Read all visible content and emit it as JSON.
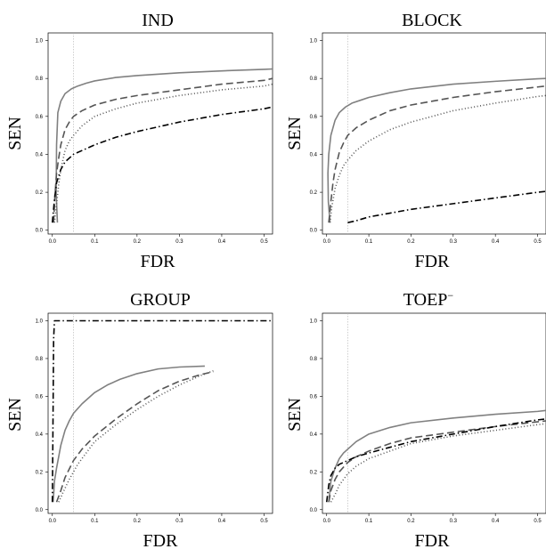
{
  "chart_data": [
    {
      "type": "line",
      "title": "IND",
      "xlabel": "FDR",
      "ylabel": "SEN",
      "xlim": [
        -0.01,
        0.52
      ],
      "ylim": [
        -0.02,
        1.04
      ],
      "xticks": [
        "0.0",
        "0.1",
        "0.2",
        "0.3",
        "0.4",
        "0.5"
      ],
      "yticks": [
        "0.0",
        "0.2",
        "0.4",
        "0.6",
        "0.8",
        "1.0"
      ],
      "vline": 0.05,
      "series": [
        {
          "style": "solid",
          "color": "#808080",
          "x": [
            0.012,
            0.009,
            0.01,
            0.013,
            0.02,
            0.03,
            0.045,
            0.06,
            0.08,
            0.1,
            0.15,
            0.2,
            0.3,
            0.4,
            0.5,
            0.52
          ],
          "y": [
            0.04,
            0.2,
            0.45,
            0.62,
            0.68,
            0.72,
            0.745,
            0.76,
            0.775,
            0.787,
            0.805,
            0.815,
            0.83,
            0.84,
            0.848,
            0.85
          ]
        },
        {
          "style": "dashed",
          "color": "#555555",
          "x": [
            0.003,
            0.006,
            0.01,
            0.015,
            0.02,
            0.03,
            0.04,
            0.05,
            0.07,
            0.1,
            0.15,
            0.2,
            0.3,
            0.4,
            0.5,
            0.52
          ],
          "y": [
            0.04,
            0.18,
            0.3,
            0.38,
            0.45,
            0.53,
            0.57,
            0.6,
            0.63,
            0.66,
            0.69,
            0.71,
            0.74,
            0.77,
            0.79,
            0.8
          ]
        },
        {
          "style": "dotted",
          "color": "#555555",
          "x": [
            0.005,
            0.01,
            0.015,
            0.02,
            0.03,
            0.04,
            0.05,
            0.07,
            0.1,
            0.15,
            0.2,
            0.3,
            0.4,
            0.5,
            0.52
          ],
          "y": [
            0.04,
            0.14,
            0.24,
            0.32,
            0.42,
            0.47,
            0.5,
            0.55,
            0.6,
            0.64,
            0.67,
            0.71,
            0.74,
            0.76,
            0.77
          ]
        },
        {
          "style": "dotdash",
          "color": "#000000",
          "x": [
            0.0,
            0.005,
            0.01,
            0.02,
            0.03,
            0.05,
            0.07,
            0.1,
            0.15,
            0.2,
            0.3,
            0.4,
            0.5,
            0.52
          ],
          "y": [
            0.04,
            0.16,
            0.25,
            0.32,
            0.36,
            0.4,
            0.42,
            0.45,
            0.49,
            0.52,
            0.57,
            0.61,
            0.64,
            0.65
          ]
        }
      ]
    },
    {
      "type": "line",
      "title": "BLOCK",
      "xlabel": "FDR",
      "ylabel": "SEN",
      "xlim": [
        -0.01,
        0.52
      ],
      "ylim": [
        -0.02,
        1.04
      ],
      "xticks": [
        "0.0",
        "0.1",
        "0.2",
        "0.3",
        "0.4",
        "0.5"
      ],
      "yticks": [
        "0.0",
        "0.2",
        "0.4",
        "0.6",
        "0.8",
        "1.0"
      ],
      "vline": 0.05,
      "series": [
        {
          "style": "solid",
          "color": "#808080",
          "x": [
            0.008,
            0.004,
            0.003,
            0.005,
            0.01,
            0.02,
            0.03,
            0.045,
            0.06,
            0.08,
            0.1,
            0.15,
            0.2,
            0.3,
            0.4,
            0.5,
            0.52
          ],
          "y": [
            0.04,
            0.15,
            0.3,
            0.4,
            0.5,
            0.58,
            0.62,
            0.65,
            0.67,
            0.685,
            0.7,
            0.725,
            0.745,
            0.77,
            0.785,
            0.798,
            0.8
          ]
        },
        {
          "style": "dashed",
          "color": "#555555",
          "x": [
            0.005,
            0.01,
            0.015,
            0.02,
            0.03,
            0.04,
            0.05,
            0.07,
            0.1,
            0.15,
            0.2,
            0.3,
            0.4,
            0.5,
            0.52
          ],
          "y": [
            0.04,
            0.15,
            0.25,
            0.32,
            0.41,
            0.46,
            0.5,
            0.54,
            0.58,
            0.63,
            0.66,
            0.7,
            0.73,
            0.755,
            0.76
          ]
        },
        {
          "style": "dotted",
          "color": "#555555",
          "x": [
            0.008,
            0.012,
            0.02,
            0.03,
            0.04,
            0.05,
            0.07,
            0.1,
            0.15,
            0.2,
            0.3,
            0.4,
            0.5,
            0.52
          ],
          "y": [
            0.04,
            0.12,
            0.22,
            0.29,
            0.34,
            0.37,
            0.42,
            0.47,
            0.53,
            0.57,
            0.63,
            0.67,
            0.705,
            0.71
          ]
        },
        {
          "style": "dotdash",
          "color": "#000000",
          "x": [
            0.05,
            0.07,
            0.1,
            0.15,
            0.2,
            0.3,
            0.4,
            0.5,
            0.52
          ],
          "y": [
            0.04,
            0.05,
            0.07,
            0.09,
            0.11,
            0.14,
            0.17,
            0.2,
            0.205
          ]
        }
      ]
    },
    {
      "type": "line",
      "title": "GROUP",
      "xlabel": "FDR",
      "ylabel": "SEN",
      "xlim": [
        -0.01,
        0.52
      ],
      "ylim": [
        -0.02,
        1.04
      ],
      "xticks": [
        "0.0",
        "0.1",
        "0.2",
        "0.3",
        "0.4",
        "0.5"
      ],
      "yticks": [
        "0.0",
        "0.2",
        "0.4",
        "0.6",
        "0.8",
        "1.0"
      ],
      "vline": 0.05,
      "series": [
        {
          "style": "solid",
          "color": "#808080",
          "x": [
            0.002,
            0.005,
            0.01,
            0.02,
            0.03,
            0.04,
            0.05,
            0.07,
            0.1,
            0.13,
            0.16,
            0.2,
            0.25,
            0.3,
            0.36
          ],
          "y": [
            0.04,
            0.15,
            0.22,
            0.34,
            0.42,
            0.47,
            0.51,
            0.56,
            0.62,
            0.66,
            0.69,
            0.72,
            0.745,
            0.755,
            0.76
          ]
        },
        {
          "style": "dashed",
          "color": "#555555",
          "x": [
            0.01,
            0.02,
            0.03,
            0.05,
            0.07,
            0.1,
            0.15,
            0.2,
            0.25,
            0.3,
            0.35,
            0.38
          ],
          "y": [
            0.04,
            0.1,
            0.17,
            0.26,
            0.32,
            0.39,
            0.48,
            0.56,
            0.63,
            0.68,
            0.715,
            0.73
          ]
        },
        {
          "style": "dotted",
          "color": "#555555",
          "x": [
            0.015,
            0.025,
            0.04,
            0.06,
            0.08,
            0.1,
            0.15,
            0.2,
            0.25,
            0.3,
            0.35,
            0.38
          ],
          "y": [
            0.04,
            0.09,
            0.16,
            0.24,
            0.3,
            0.36,
            0.45,
            0.53,
            0.6,
            0.66,
            0.71,
            0.735
          ]
        },
        {
          "style": "dotdash",
          "color": "#000000",
          "x": [
            0.0,
            0.001,
            0.002,
            0.003,
            0.005,
            0.1,
            0.2,
            0.3,
            0.4,
            0.5,
            0.52
          ],
          "y": [
            0.04,
            0.3,
            0.6,
            0.9,
            1.0,
            1.0,
            1.0,
            1.0,
            1.0,
            1.0,
            1.0
          ]
        }
      ]
    },
    {
      "type": "line",
      "title": "TOEP",
      "title_superscript": "−",
      "xlabel": "FDR",
      "ylabel": "SEN",
      "xlim": [
        -0.01,
        0.52
      ],
      "ylim": [
        -0.02,
        1.04
      ],
      "xticks": [
        "0.0",
        "0.1",
        "0.2",
        "0.3",
        "0.4",
        "0.5"
      ],
      "yticks": [
        "0.0",
        "0.2",
        "0.4",
        "0.6",
        "0.8",
        "1.0"
      ],
      "vline": 0.05,
      "series": [
        {
          "style": "solid",
          "color": "#808080",
          "x": [
            0.005,
            0.01,
            0.02,
            0.03,
            0.04,
            0.05,
            0.07,
            0.1,
            0.15,
            0.2,
            0.3,
            0.4,
            0.5,
            0.52
          ],
          "y": [
            0.04,
            0.15,
            0.22,
            0.27,
            0.3,
            0.32,
            0.36,
            0.4,
            0.435,
            0.46,
            0.485,
            0.505,
            0.52,
            0.525
          ]
        },
        {
          "style": "dashed",
          "color": "#555555",
          "x": [
            0.005,
            0.01,
            0.02,
            0.03,
            0.05,
            0.07,
            0.1,
            0.15,
            0.2,
            0.3,
            0.4,
            0.5,
            0.52
          ],
          "y": [
            0.04,
            0.1,
            0.16,
            0.2,
            0.25,
            0.28,
            0.31,
            0.35,
            0.38,
            0.41,
            0.44,
            0.465,
            0.47
          ]
        },
        {
          "style": "dotted",
          "color": "#555555",
          "x": [
            0.01,
            0.02,
            0.03,
            0.05,
            0.07,
            0.1,
            0.15,
            0.2,
            0.3,
            0.4,
            0.5,
            0.52
          ],
          "y": [
            0.04,
            0.08,
            0.13,
            0.19,
            0.23,
            0.27,
            0.31,
            0.35,
            0.39,
            0.42,
            0.45,
            0.455
          ]
        },
        {
          "style": "dotdash",
          "color": "#000000",
          "x": [
            0.0,
            0.005,
            0.01,
            0.02,
            0.03,
            0.05,
            0.07,
            0.1,
            0.15,
            0.2,
            0.3,
            0.4,
            0.5,
            0.52
          ],
          "y": [
            0.04,
            0.13,
            0.18,
            0.22,
            0.24,
            0.26,
            0.28,
            0.3,
            0.33,
            0.36,
            0.4,
            0.44,
            0.475,
            0.48
          ]
        }
      ]
    }
  ]
}
